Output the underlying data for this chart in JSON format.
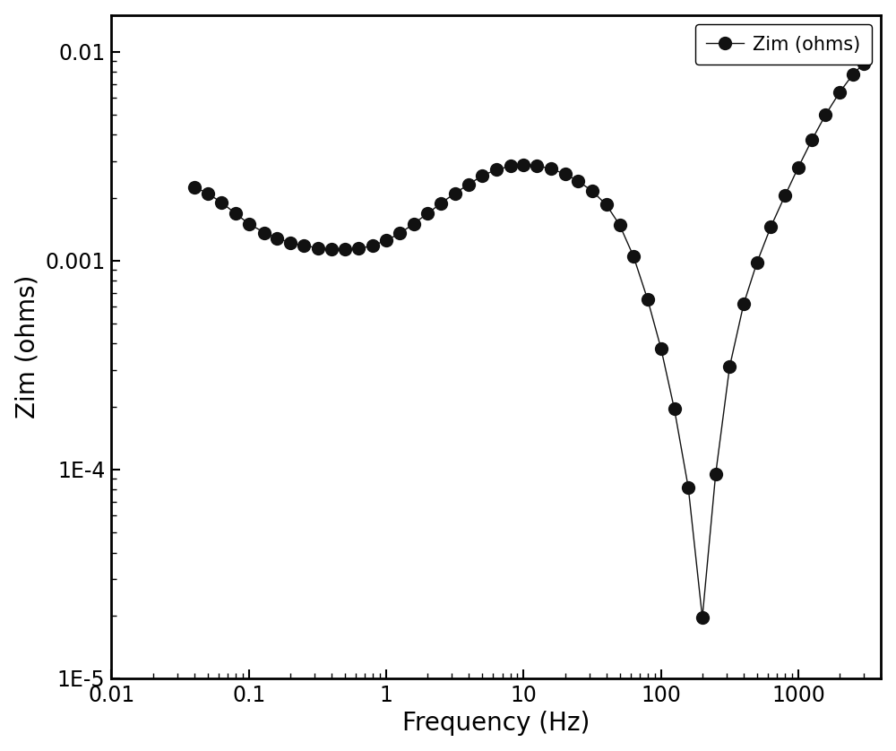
{
  "freq": [
    0.04,
    0.05,
    0.063,
    0.08,
    0.1,
    0.13,
    0.16,
    0.2,
    0.25,
    0.32,
    0.4,
    0.5,
    0.63,
    0.8,
    1.0,
    1.26,
    1.58,
    2.0,
    2.5,
    3.16,
    4.0,
    5.0,
    6.3,
    8.0,
    10.0,
    12.5,
    15.8,
    20.0,
    25.0,
    31.6,
    40.0,
    50.0,
    63.0,
    80.0,
    100.0,
    125.0,
    158.0,
    200.0,
    250.0,
    316.0,
    400.0,
    500.0,
    630.0,
    800.0,
    1000.0,
    1260.0,
    1580.0,
    2000.0,
    2500.0,
    3000.0
  ],
  "zim": [
    0.00225,
    0.0021,
    0.0019,
    0.00168,
    0.0015,
    0.00136,
    0.00128,
    0.00122,
    0.00118,
    0.00115,
    0.00113,
    0.00113,
    0.00114,
    0.00118,
    0.00125,
    0.00135,
    0.0015,
    0.00168,
    0.00188,
    0.0021,
    0.00232,
    0.00255,
    0.00272,
    0.00283,
    0.00288,
    0.00285,
    0.00275,
    0.0026,
    0.0024,
    0.00215,
    0.00185,
    0.00148,
    0.00105,
    0.00065,
    0.00038,
    0.000195,
    8.2e-05,
    1.95e-05,
    9.5e-05,
    0.00031,
    0.00062,
    0.00098,
    0.00145,
    0.00205,
    0.0028,
    0.0038,
    0.005,
    0.0064,
    0.0078,
    0.0088
  ],
  "line_color": "#111111",
  "marker_color": "#111111",
  "marker_size": 11,
  "line_width": 1.0,
  "xlim": [
    0.01,
    4000
  ],
  "ylim": [
    1e-05,
    0.015
  ],
  "xlabel": "Frequency (Hz)",
  "ylabel": "Zim (ohms)",
  "legend_label": "Zim (ohms)",
  "background_color": "#ffffff",
  "xlabel_fontsize": 20,
  "ylabel_fontsize": 20,
  "tick_fontsize": 17,
  "legend_fontsize": 15
}
